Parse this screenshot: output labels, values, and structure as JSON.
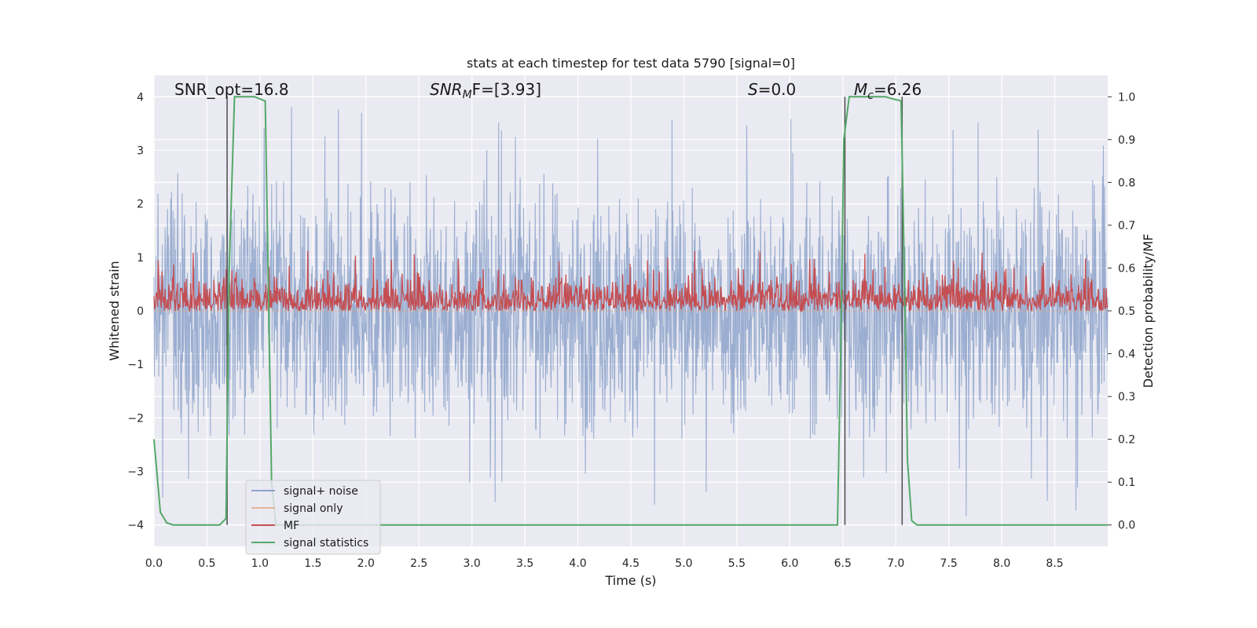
{
  "chart_data": {
    "type": "line",
    "title": "stats at each timestep for test data 5790 [signal=0]",
    "xlabel": "Time (s)",
    "ylabel": "Whitened strain",
    "y2label": "Detection probability/MF",
    "xlim": [
      0.0,
      9.0
    ],
    "ylim": [
      -4.4,
      4.4
    ],
    "y2lim": [
      -0.05,
      1.05
    ],
    "xticks": [
      "0.0",
      "0.5",
      "1.0",
      "1.5",
      "2.0",
      "2.5",
      "3.0",
      "3.5",
      "4.0",
      "4.5",
      "5.0",
      "5.5",
      "6.0",
      "6.5",
      "7.0",
      "7.5",
      "8.0",
      "8.5"
    ],
    "yticks": [
      "4",
      "3",
      "2",
      "1",
      "0",
      "−1",
      "−2",
      "−3",
      "−4"
    ],
    "y2ticks": [
      "1.0",
      "0.9",
      "0.8",
      "0.7",
      "0.6",
      "0.5",
      "0.4",
      "0.3",
      "0.2",
      "0.1",
      "0.0"
    ],
    "annotations": {
      "snr_opt": "SNR_opt=16.8",
      "snr_mf_main": "SNR",
      "snr_mf_sub": "M",
      "snr_mf_rest": "F=[3.93]",
      "s_main": "S",
      "s_rest": "=0.0",
      "mc_main": "M",
      "mc_sub": "c",
      "mc_rest": "=6.26"
    },
    "legend": {
      "placement": "lower-left",
      "entries": [
        {
          "label": "signal+ noise",
          "color": "#4c72b0"
        },
        {
          "label": "signal only",
          "color": "#dd8452"
        },
        {
          "label": "MF",
          "color": "#c44e52"
        },
        {
          "label": "signal statistics",
          "color": "#55a868"
        }
      ]
    },
    "series": [
      {
        "name": "signal+ noise",
        "color": "#4c72b0",
        "style": "dense noise",
        "typical_range": [
          -2.4,
          2.6
        ],
        "extremes": [
          -3.9,
          3.9
        ]
      },
      {
        "name": "signal only",
        "color": "#dd8452",
        "values": [
          0
        ]
      },
      {
        "name": "MF",
        "color": "#c44e52",
        "axis": "right",
        "typical_range": [
          0.5,
          0.6
        ],
        "extremes": [
          0.5,
          0.64
        ]
      },
      {
        "name": "signal statistics",
        "color": "#55a868",
        "axis": "right",
        "x": [
          0.0,
          0.06,
          0.12,
          0.18,
          0.3,
          0.45,
          0.62,
          0.68,
          0.71,
          0.76,
          0.85,
          0.95,
          1.05,
          1.08,
          1.11,
          1.15,
          1.25,
          1.5,
          2.0,
          3.0,
          4.0,
          5.0,
          6.0,
          6.45,
          6.48,
          6.51,
          6.56,
          6.62,
          6.7,
          6.9,
          7.05,
          7.08,
          7.11,
          7.15,
          7.2,
          7.3,
          7.6,
          8.0,
          9.0
        ],
        "values": [
          0.2,
          0.03,
          0.005,
          0.0,
          0.0,
          0.0,
          0.0,
          0.015,
          0.6,
          1.0,
          1.0,
          1.0,
          0.99,
          0.55,
          0.1,
          0.0,
          0.0,
          0.0,
          0.0,
          0.0,
          0.0,
          0.0,
          0.0,
          0.0,
          0.4,
          0.9,
          1.0,
          1.0,
          1.0,
          1.0,
          0.99,
          0.6,
          0.15,
          0.01,
          0.0,
          0.0,
          0.0,
          0.0,
          0.0
        ]
      },
      {
        "name": "markers",
        "color": "#4d4d4d",
        "x": [
          0.69,
          6.52,
          7.06
        ]
      }
    ]
  }
}
